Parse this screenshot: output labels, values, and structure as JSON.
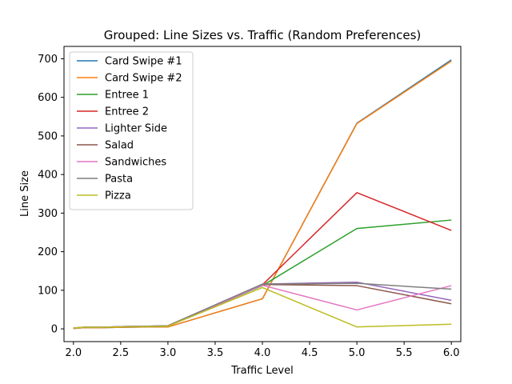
{
  "chart_data": {
    "type": "line",
    "title": "Grouped: Line Sizes vs. Traffic (Random Preferences)",
    "xlabel": "Traffic Level",
    "ylabel": "Line Size",
    "xlim": [
      1.9,
      6.1
    ],
    "ylim": [
      -33,
      732
    ],
    "xticks": [
      "2.0",
      "2.5",
      "3.0",
      "3.5",
      "4.0",
      "4.5",
      "5.0",
      "5.5",
      "6.0"
    ],
    "xtick_values": [
      2.0,
      2.5,
      3.0,
      3.5,
      4.0,
      4.5,
      5.0,
      5.5,
      6.0
    ],
    "yticks": [
      "0",
      "100",
      "200",
      "300",
      "400",
      "500",
      "600",
      "700"
    ],
    "ytick_values": [
      0,
      100,
      200,
      300,
      400,
      500,
      600,
      700
    ],
    "legend_position": "upper-left",
    "grid": false,
    "x": [
      2.0,
      2.1,
      2.3,
      2.5,
      2.8,
      3.0,
      4.0,
      5.0,
      6.0
    ],
    "series": [
      {
        "name": "Card Swipe #1",
        "color": "#1f77b4",
        "values": [
          1,
          3,
          3,
          4,
          5,
          5,
          78,
          533,
          697
        ]
      },
      {
        "name": "Card Swipe #2",
        "color": "#ff7f0e",
        "values": [
          1,
          3,
          3,
          4,
          5,
          5,
          78,
          532,
          694
        ]
      },
      {
        "name": "Entree 1",
        "color": "#2ca02c",
        "values": [
          2,
          4,
          4,
          5,
          6,
          7,
          112,
          260,
          282
        ]
      },
      {
        "name": "Entree 2",
        "color": "#d62728",
        "values": [
          2,
          4,
          4,
          5,
          6,
          7,
          114,
          353,
          255
        ]
      },
      {
        "name": "Lighter Side",
        "color": "#9467bd",
        "values": [
          2,
          4,
          4,
          6,
          7,
          8,
          116,
          121,
          74
        ]
      },
      {
        "name": "Salad",
        "color": "#8c564b",
        "values": [
          2,
          4,
          4,
          6,
          7,
          8,
          115,
          112,
          65
        ]
      },
      {
        "name": "Sandwiches",
        "color": "#e377c2",
        "values": [
          2,
          4,
          4,
          6,
          7,
          7,
          113,
          49,
          112
        ]
      },
      {
        "name": "Pasta",
        "color": "#7f7f7f",
        "values": [
          2,
          4,
          4,
          6,
          7,
          8,
          116,
          118,
          103
        ]
      },
      {
        "name": "Pizza",
        "color": "#bcbd22",
        "values": [
          2,
          4,
          4,
          5,
          6,
          7,
          107,
          5,
          12
        ]
      }
    ]
  }
}
